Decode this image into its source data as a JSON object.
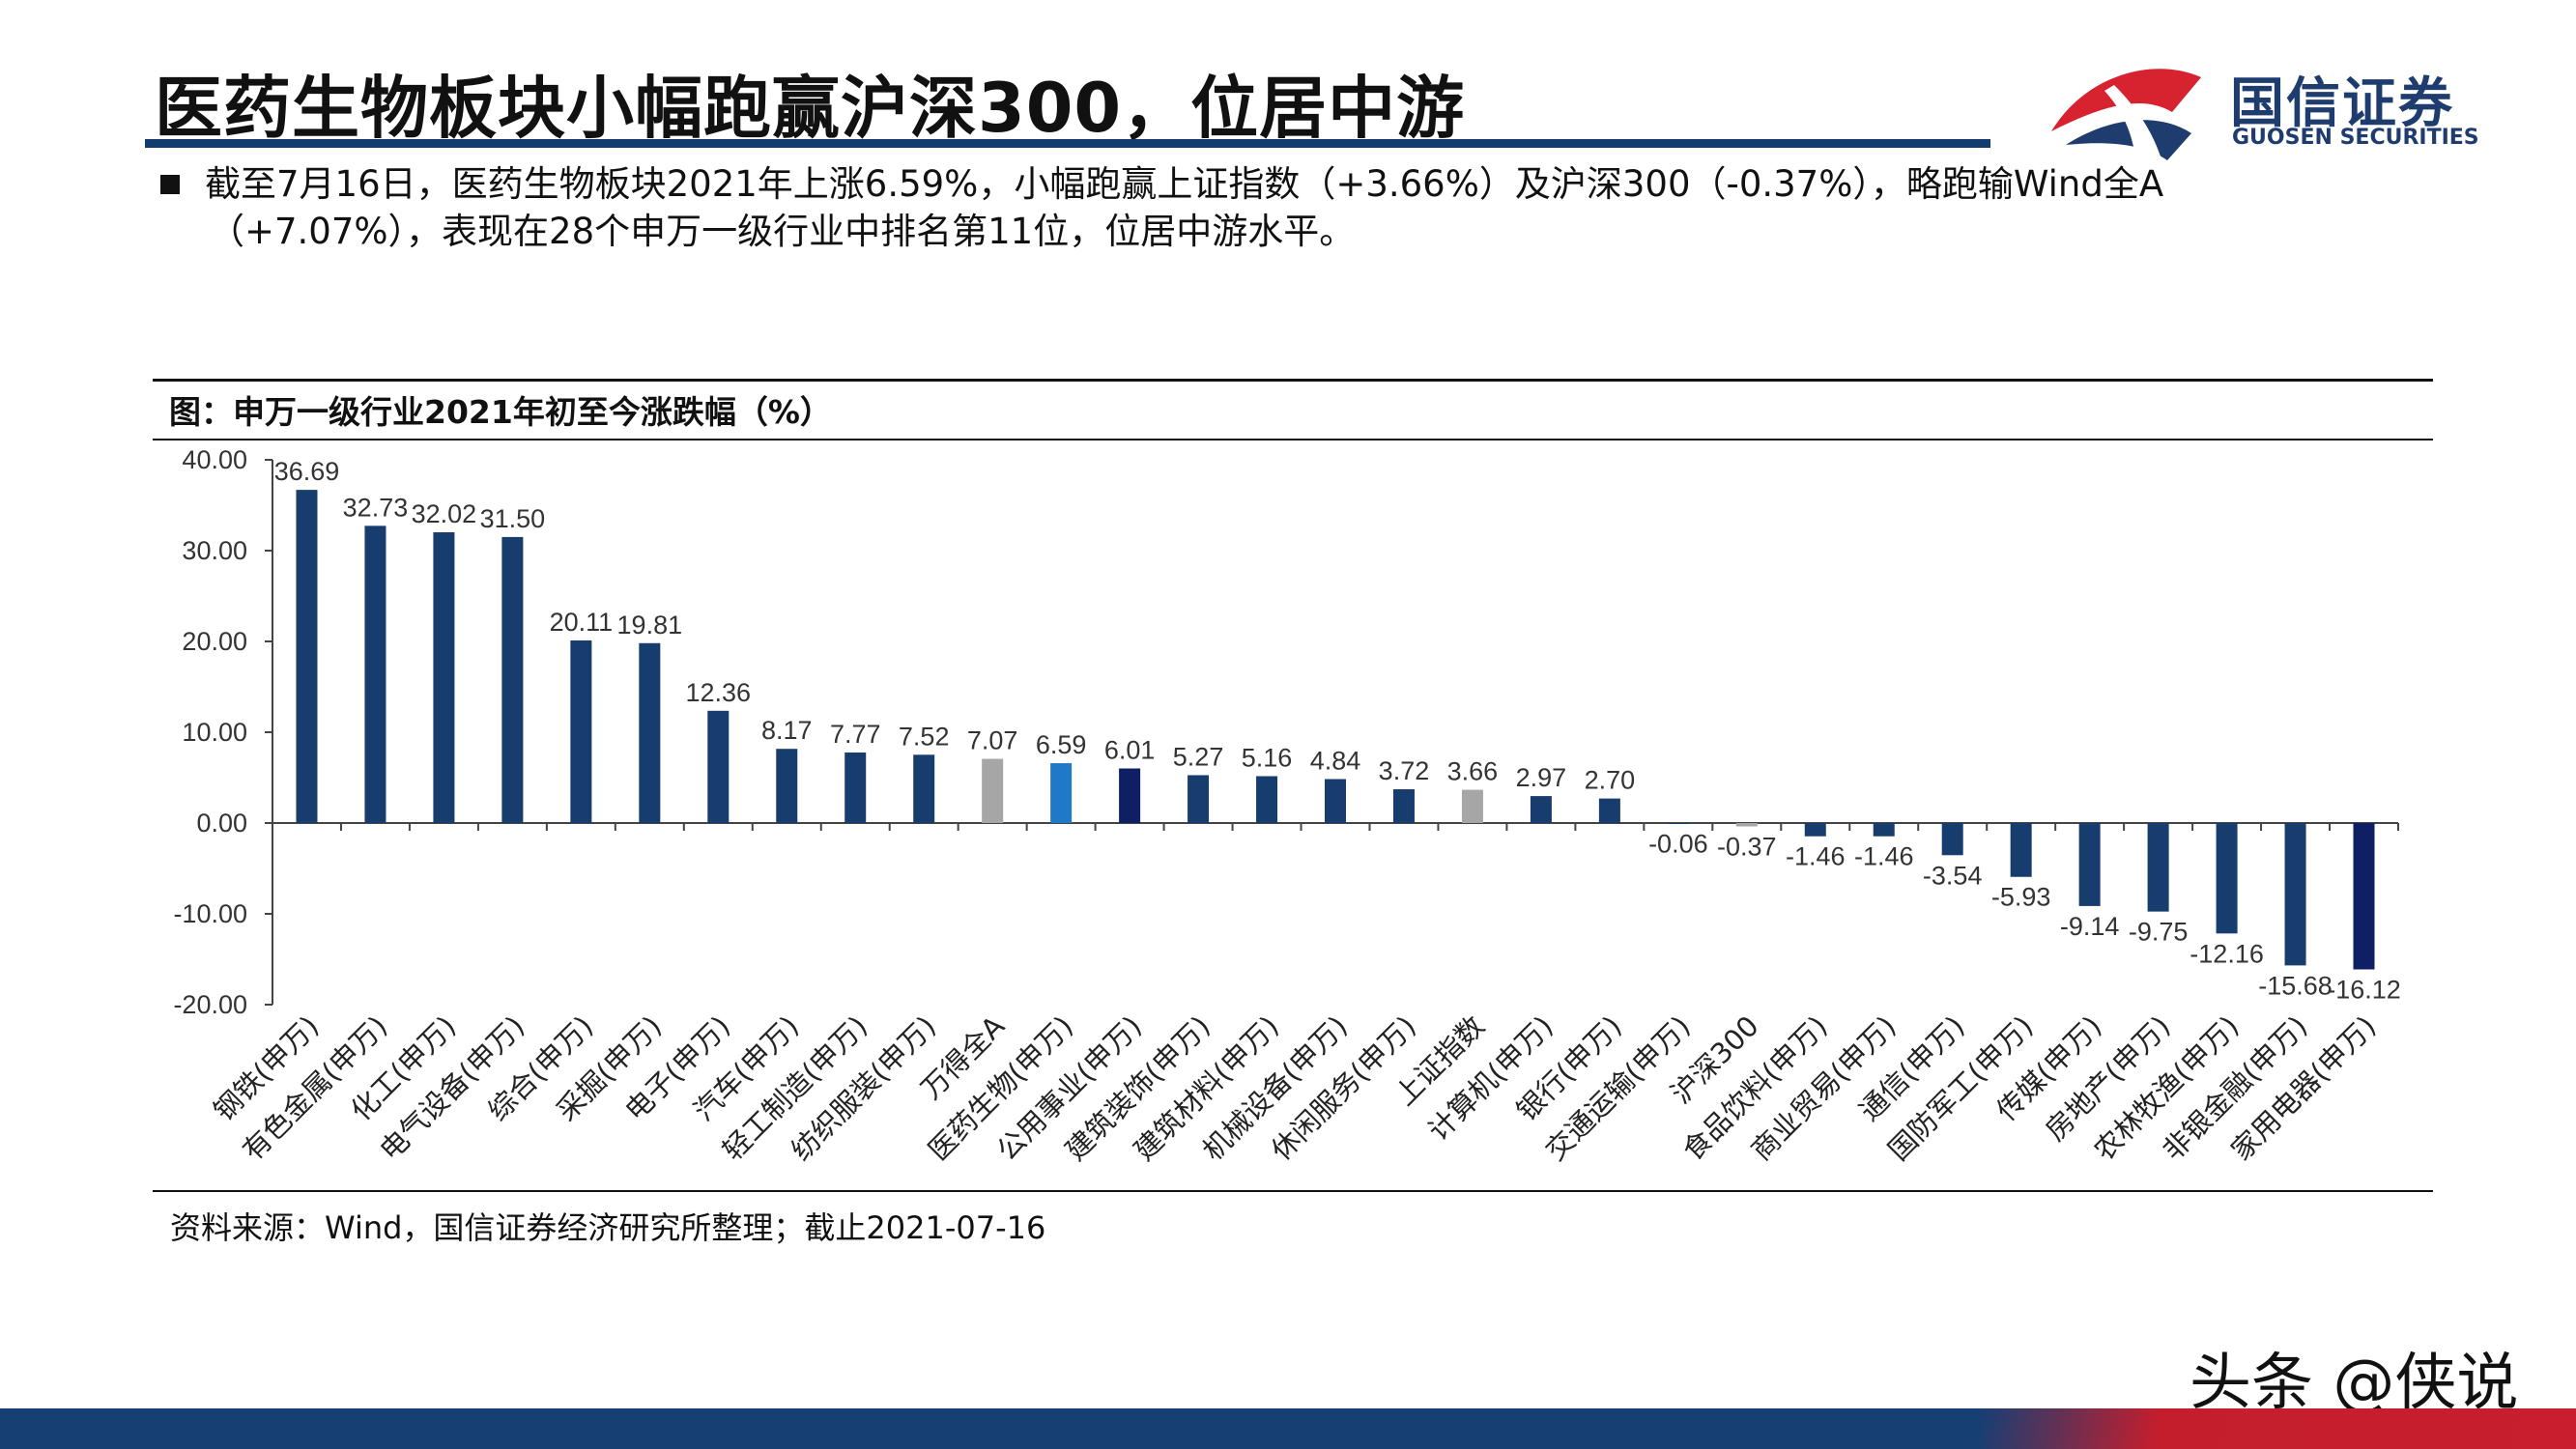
{
  "header": {
    "title": "医药生物板块小幅跑赢沪深300，位居中游",
    "logo_name": "国信证券",
    "logo_en": "GUOSEN SECURITIES"
  },
  "summary": {
    "line1": "截至7月16日，医药生物板块2021年上涨6.59%，小幅跑赢上证指数（+3.66%）及沪深300（-0.37%），略跑输Wind全A",
    "line2": "（+7.07%），表现在28个申万一级行业中排名第11位，位居中游水平。"
  },
  "figure": {
    "title": "图：申万一级行业2021年初至今涨跌幅（%）",
    "source": "资料来源：Wind，国信证券经济研究所整理；截止2021-07-16"
  },
  "watermark": "头条 @侠说",
  "colors": {
    "navy": "#173c6e",
    "gray": "#a6a6a6",
    "blue": "#1f78c8",
    "dark_navy": "#0e1f63",
    "title_rule": "#123c70"
  },
  "chart_data": {
    "type": "bar",
    "title": "图：申万一级行业2021年初至今涨跌幅（%）",
    "xlabel": "",
    "ylabel": "",
    "ylim": [
      -20,
      40
    ],
    "yticks": [
      40,
      30,
      20,
      10,
      0,
      -10,
      -20
    ],
    "ytick_labels": [
      "40.00",
      "30.00",
      "20.00",
      "10.00",
      "0.00",
      "-10.00",
      "-20.00"
    ],
    "categories": [
      "钢铁(申万)",
      "有色金属(申万)",
      "化工(申万)",
      "电气设备(申万)",
      "综合(申万)",
      "采掘(申万)",
      "电子(申万)",
      "汽车(申万)",
      "轻工制造(申万)",
      "纺织服装(申万)",
      "万得全A",
      "医药生物(申万)",
      "公用事业(申万)",
      "建筑装饰(申万)",
      "建筑材料(申万)",
      "机械设备(申万)",
      "休闲服务(申万)",
      "上证指数",
      "计算机(申万)",
      "银行(申万)",
      "交通运输(申万)",
      "沪深300",
      "食品饮料(申万)",
      "商业贸易(申万)",
      "通信(申万)",
      "国防军工(申万)",
      "传媒(申万)",
      "房地产(申万)",
      "农林牧渔(申万)",
      "非银金融(申万)",
      "家用电器(申万)"
    ],
    "values": [
      36.69,
      32.73,
      32.02,
      31.5,
      20.11,
      19.81,
      12.36,
      8.17,
      7.77,
      7.52,
      7.07,
      6.59,
      6.01,
      5.27,
      5.16,
      4.84,
      3.72,
      3.66,
      2.97,
      2.7,
      -0.06,
      -0.37,
      -1.46,
      -1.46,
      -3.54,
      -5.93,
      -9.14,
      -9.75,
      -12.16,
      -15.68,
      -16.12
    ],
    "value_labels": [
      "36.69",
      "32.73",
      "32.02",
      "31.50",
      "20.11",
      "19.81",
      "12.36",
      "8.17",
      "7.77",
      "7.52",
      "7.07",
      "6.59",
      "6.01",
      "5.27",
      "5.16",
      "4.84",
      "3.72",
      "3.66",
      "2.97",
      "2.70",
      "-0.06",
      "-0.37",
      "-1.46",
      "-1.46",
      "-3.54",
      "-5.93",
      "-9.14",
      "-9.75",
      "-12.16",
      "-15.68",
      "-16.12"
    ],
    "bar_colors": [
      "navy",
      "navy",
      "navy",
      "navy",
      "navy",
      "navy",
      "navy",
      "navy",
      "navy",
      "navy",
      "gray",
      "blue",
      "dark_navy",
      "navy",
      "navy",
      "navy",
      "navy",
      "gray",
      "navy",
      "navy",
      "navy",
      "gray",
      "navy",
      "navy",
      "navy",
      "navy",
      "navy",
      "navy",
      "navy",
      "navy",
      "dark_navy"
    ],
    "grid": false,
    "legend": "none"
  }
}
